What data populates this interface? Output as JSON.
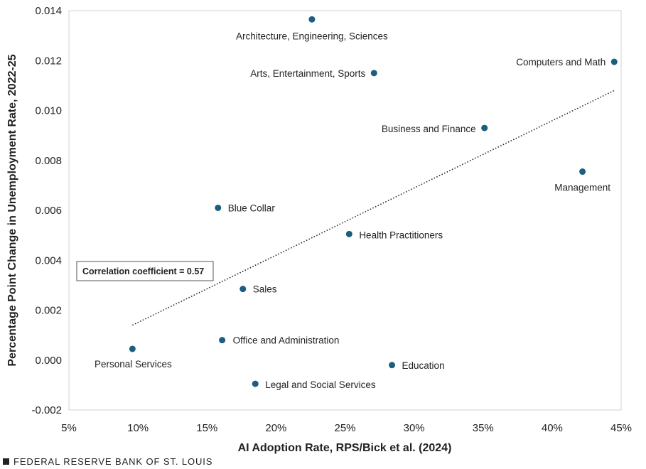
{
  "chart_data": {
    "type": "scatter",
    "xlabel": "AI Adoption Rate, RPS/Bick et al. (2024)",
    "ylabel": "Percentage Point Change in Unemployment Rate, 2022-25",
    "xlim": [
      5,
      45
    ],
    "ylim": [
      -0.002,
      0.014
    ],
    "x_ticks": [
      5,
      10,
      15,
      20,
      25,
      30,
      35,
      40,
      45
    ],
    "x_tick_labels": [
      "5%",
      "10%",
      "15%",
      "20%",
      "25%",
      "30%",
      "35%",
      "40%",
      "45%"
    ],
    "y_ticks": [
      -0.002,
      0.0,
      0.002,
      0.004,
      0.006,
      0.008,
      0.01,
      0.012,
      0.014
    ],
    "y_tick_labels": [
      "-0.002",
      "0.000",
      "0.002",
      "0.004",
      "0.006",
      "0.008",
      "0.010",
      "0.012",
      "0.014"
    ],
    "grid": false,
    "marker_color": "#1a5e80",
    "points": [
      {
        "label": "Architecture, Engineering, Sciences",
        "x": 22.6,
        "y": 0.01365
      },
      {
        "label": "Computers and Math",
        "x": 44.5,
        "y": 0.01195
      },
      {
        "label": "Arts, Entertainment, Sports",
        "x": 27.1,
        "y": 0.0115
      },
      {
        "label": "Business and Finance",
        "x": 35.1,
        "y": 0.0093
      },
      {
        "label": "Management",
        "x": 42.2,
        "y": 0.00755
      },
      {
        "label": "Blue Collar",
        "x": 15.8,
        "y": 0.0061
      },
      {
        "label": "Health Practitioners",
        "x": 25.3,
        "y": 0.00505
      },
      {
        "label": "Sales",
        "x": 17.6,
        "y": 0.00285
      },
      {
        "label": "Office and Administration",
        "x": 16.1,
        "y": 0.0008
      },
      {
        "label": "Personal Services",
        "x": 9.6,
        "y": 0.00045
      },
      {
        "label": "Education",
        "x": 28.4,
        "y": -0.0002
      },
      {
        "label": "Legal and Social Services",
        "x": 18.5,
        "y": -0.00095
      }
    ],
    "trendline": {
      "style": "dotted",
      "from": [
        9.6,
        0.0014
      ],
      "to": [
        44.5,
        0.0108
      ]
    },
    "annotations": [
      {
        "text": "Correlation coefficient = 0.57"
      }
    ]
  },
  "footer": {
    "source": "FEDERAL RESERVE BANK OF ST. LOUIS"
  }
}
